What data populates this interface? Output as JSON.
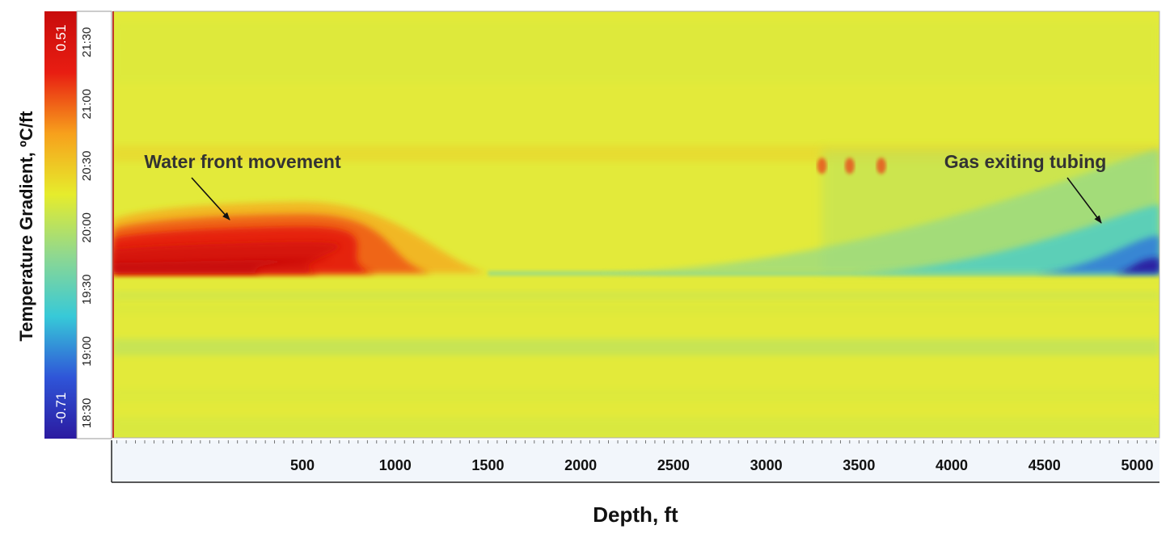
{
  "chart_data": {
    "type": "heatmap",
    "title": "",
    "xlabel": "Depth, ft",
    "ylabel": "",
    "xlim": [
      -520,
      5120
    ],
    "x_ticks": [
      500,
      1000,
      1500,
      2000,
      2500,
      3000,
      3500,
      4000,
      4500,
      5000
    ],
    "y_tick_labels": [
      "18:30",
      "19:00",
      "19:30",
      "20:00",
      "20:30",
      "21:00",
      "21:30"
    ],
    "y_tick_minutes": [
      1110,
      1140,
      1170,
      1200,
      1230,
      1260,
      1290
    ],
    "ylim_minutes": [
      1098,
      1305
    ],
    "colorbar": {
      "label": "Temperature Gradient,  ºC/ft",
      "min": -0.71,
      "max": 0.51,
      "min_label": "-0.71",
      "max_label": "0.51",
      "colors": [
        "#2b1aa0",
        "#2f55d8",
        "#37c9d8",
        "#8fd890",
        "#e6ec2c",
        "#f7a01c",
        "#e81d12",
        "#c80c0c"
      ]
    },
    "baseline_gradient": 0.0,
    "features": [
      {
        "label": "Water front movement",
        "kind": "hot",
        "depth_range": [
          -520,
          1500
        ],
        "peak_depth": 500,
        "time_start": "19:38",
        "time_peak_extent": "20:08",
        "peak_gradient": 0.51
      },
      {
        "label": "Gas exiting tubing",
        "kind": "cold",
        "depth_range": [
          2100,
          5120
        ],
        "peak_depth": 5100,
        "time_start": "19:38",
        "time_end": "20:38",
        "peak_gradient": -0.71
      }
    ],
    "annotations": [
      {
        "text": "Water front movement",
        "arrow_from": [
          200,
          20.25
        ],
        "arrow_to": [
          500,
          20.0
        ]
      },
      {
        "text": "Gas exiting tubing",
        "arrow_from": [
          4480,
          20.25
        ],
        "arrow_to": [
          4800,
          20.0
        ]
      }
    ]
  }
}
